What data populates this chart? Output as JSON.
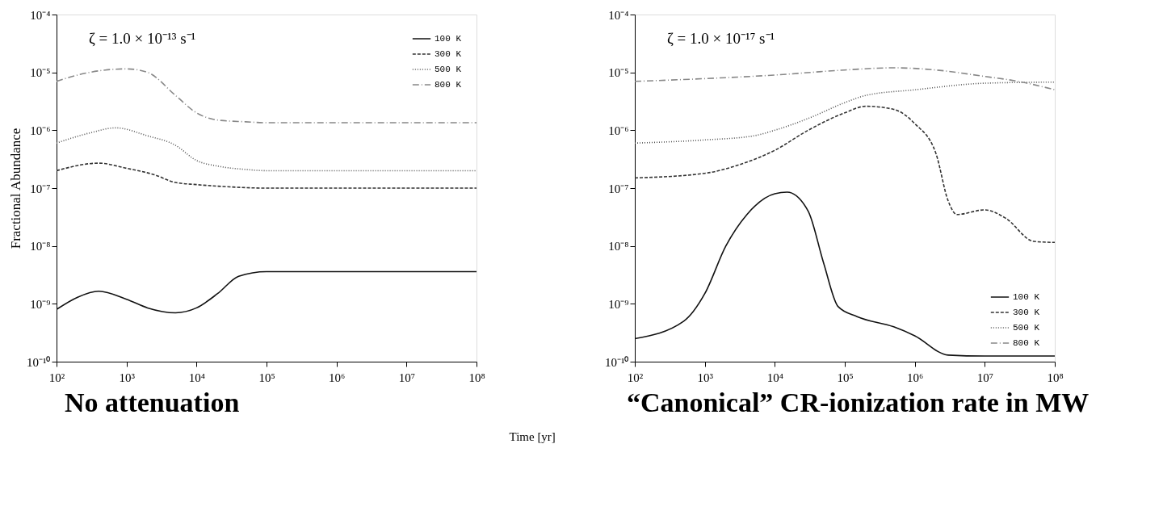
{
  "chart_data": [
    {
      "type": "line",
      "xlabel": "Time [yr]",
      "ylabel": "Fractional Abundance",
      "log": "xy",
      "grid": false,
      "legend": "top right",
      "annotations": [
        "ζ = 1.0 × 10⁻¹³ s⁻¹",
        "No attenuation"
      ],
      "xlim": [
        100,
        100000000
      ],
      "ylim": [
        1e-10,
        0.0001
      ],
      "xticks": [
        {
          "value": 100,
          "label": "10²"
        },
        {
          "value": 1000,
          "label": "10³"
        },
        {
          "value": 10000,
          "label": "10⁴"
        },
        {
          "value": 100000,
          "label": "10⁵"
        },
        {
          "value": 1000000,
          "label": "10⁶"
        },
        {
          "value": 10000000,
          "label": "10⁷"
        },
        {
          "value": 100000000,
          "label": "10⁸"
        }
      ],
      "yticks": [
        {
          "value": 1e-10,
          "label": "10⁻¹⁰"
        },
        {
          "value": 1e-09,
          "label": "10⁻⁹"
        },
        {
          "value": 1e-08,
          "label": "10⁻⁸"
        },
        {
          "value": 1e-07,
          "label": "10⁻⁷"
        },
        {
          "value": 1e-06,
          "label": "10⁻⁶"
        },
        {
          "value": 1e-05,
          "label": "10⁻⁵"
        },
        {
          "value": 0.0001,
          "label": "10⁻⁴"
        }
      ],
      "series": [
        {
          "name": "100 K",
          "color": "#111111",
          "line_style": "solid",
          "x": [
            100,
            200,
            400,
            1000,
            2000,
            5000,
            10000,
            20000,
            40000,
            100000,
            100000000
          ],
          "values": [
            8e-10,
            1.3e-09,
            1.65e-09,
            1.2e-09,
            8.5e-10,
            7e-10,
            8.5e-10,
            1.5e-09,
            3e-09,
            3.6e-09,
            3.6e-09
          ]
        },
        {
          "name": "300 K",
          "color": "#333333",
          "line_style": "dashed",
          "x": [
            100,
            400,
            1000,
            2500,
            5000,
            10000,
            30000,
            100000,
            100000000
          ],
          "values": [
            2e-07,
            2.7e-07,
            2.2e-07,
            1.7e-07,
            1.25e-07,
            1.15e-07,
            1.05e-07,
            1e-07,
            1e-07
          ]
        },
        {
          "name": "500 K",
          "color": "#555555",
          "line_style": "dotted",
          "x": [
            100,
            300,
            700,
            2000,
            5000,
            10000,
            20000,
            50000,
            100000,
            100000000
          ],
          "values": [
            6e-07,
            9e-07,
            1.1e-06,
            8e-07,
            5.5e-07,
            3e-07,
            2.4e-07,
            2.1e-07,
            2e-07,
            2e-07
          ]
        },
        {
          "name": "800 K",
          "color": "#888888",
          "line_style": "dashdot",
          "x": [
            100,
            200,
            500,
            1000,
            2000,
            5000,
            10000,
            20000,
            50000,
            100000,
            100000000
          ],
          "values": [
            7e-06,
            9e-06,
            1.1e-05,
            1.15e-05,
            1e-05,
            4e-06,
            2e-06,
            1.5e-06,
            1.4e-06,
            1.35e-06,
            1.35e-06
          ]
        }
      ]
    },
    {
      "type": "line",
      "log": "xy",
      "grid": false,
      "legend": "bottom right",
      "annotations": [
        "ζ = 1.0 × 10⁻¹⁷ s⁻¹",
        "“Canonical” CR-ionization rate in MW"
      ],
      "xlim": [
        100,
        100000000
      ],
      "ylim": [
        1e-10,
        0.0001
      ],
      "xticks": [
        {
          "value": 100,
          "label": "10²"
        },
        {
          "value": 1000,
          "label": "10³"
        },
        {
          "value": 10000,
          "label": "10⁴"
        },
        {
          "value": 100000,
          "label": "10⁵"
        },
        {
          "value": 1000000,
          "label": "10⁶"
        },
        {
          "value": 10000000,
          "label": "10⁷"
        },
        {
          "value": 100000000,
          "label": "10⁸"
        }
      ],
      "yticks": [
        {
          "value": 1e-10,
          "label": "10⁻¹⁰"
        },
        {
          "value": 1e-09,
          "label": "10⁻⁹"
        },
        {
          "value": 1e-08,
          "label": "10⁻⁸"
        },
        {
          "value": 1e-07,
          "label": "10⁻⁷"
        },
        {
          "value": 1e-06,
          "label": "10⁻⁶"
        },
        {
          "value": 1e-05,
          "label": "10⁻⁵"
        },
        {
          "value": 0.0001,
          "label": "10⁻⁴"
        }
      ],
      "series": [
        {
          "name": "100 K",
          "color": "#111111",
          "line_style": "solid",
          "x": [
            100,
            500,
            1000,
            2000,
            4000,
            10000,
            15000,
            30000,
            50000,
            80000,
            150000,
            500000,
            1000000,
            3000000,
            10000000,
            100000000
          ],
          "values": [
            2.5e-10,
            5e-10,
            1.5e-09,
            1e-08,
            3.5e-08,
            8e-08,
            8.5e-08,
            4e-08,
            5e-09,
            9e-10,
            6e-10,
            4e-10,
            2.8e-10,
            1.3e-10,
            1.25e-10,
            1.25e-10
          ]
        },
        {
          "name": "300 K",
          "color": "#333333",
          "line_style": "dashed",
          "x": [
            100,
            1000,
            3000,
            10000,
            30000,
            100000,
            200000,
            500000,
            1000000,
            2000000,
            3000000,
            4000000,
            10000000,
            20000000,
            50000000,
            100000000
          ],
          "values": [
            1.5e-07,
            1.8e-07,
            2.5e-07,
            4.5e-07,
            1e-06,
            2e-06,
            2.6e-06,
            2.3e-06,
            1.3e-06,
            4e-07,
            6e-08,
            3.5e-08,
            4.2e-08,
            3e-08,
            1.2e-08,
            1.15e-08
          ]
        },
        {
          "name": "500 K",
          "color": "#555555",
          "line_style": "dotted",
          "x": [
            100,
            1000,
            5000,
            10000,
            30000,
            100000,
            200000,
            1000000,
            10000000,
            100000000
          ],
          "values": [
            6e-07,
            6.8e-07,
            8e-07,
            1e-06,
            1.6e-06,
            3e-06,
            4e-06,
            5e-06,
            6.5e-06,
            6.8e-06
          ]
        },
        {
          "name": "800 K",
          "color": "#888888",
          "line_style": "dashdot",
          "x": [
            100,
            1000,
            10000,
            100000,
            500000,
            2000000,
            10000000,
            30000000,
            100000000
          ],
          "values": [
            7e-06,
            7.8e-06,
            9e-06,
            1.1e-05,
            1.2e-05,
            1.1e-05,
            8.5e-06,
            7e-06,
            5e-06
          ]
        }
      ]
    }
  ]
}
